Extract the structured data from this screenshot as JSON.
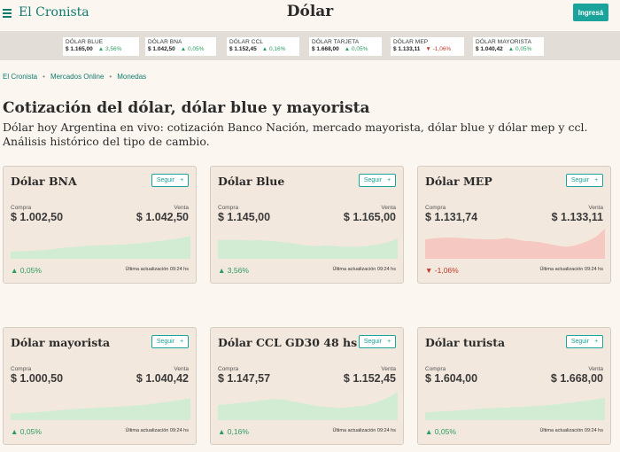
{
  "header": {
    "logo": "El Cronista",
    "title": "Dólar",
    "login_label": "Ingresá"
  },
  "ticker": [
    {
      "name": "DÓLAR BLUE",
      "value": "$ 1.165,00",
      "change": "▲ 3,56%",
      "trend": "up"
    },
    {
      "name": "DÓLAR BNA",
      "value": "$ 1.042,50",
      "change": "▲ 0,05%",
      "trend": "up"
    },
    {
      "name": "DÓLAR CCL",
      "value": "$ 1.152,45",
      "change": "▲ 0,16%",
      "trend": "up"
    },
    {
      "name": "DÓLAR TARJETA",
      "value": "$ 1.668,00",
      "change": "▲ 0,05%",
      "trend": "up"
    },
    {
      "name": "DÓLAR MEP",
      "value": "$ 1.133,11",
      "change": "▼ -1,06%",
      "trend": "down"
    },
    {
      "name": "DÓLAR MAYORISTA",
      "value": "$ 1.040,42",
      "change": "▲ 0,05%",
      "trend": "up"
    }
  ],
  "breadcrumb": [
    "El Cronista",
    "Mercados Online",
    "Monedas"
  ],
  "page": {
    "heading": "Cotización del dólar, dólar blue y mayorista",
    "intro": "Dólar hoy Argentina en vivo: cotización Banco Nación, mercado mayorista, dólar blue y dólar mep y ccl. Análisis histórico del tipo de cambio."
  },
  "card_labels": {
    "buy": "Compra",
    "sell": "Venta",
    "follow": "Seguir",
    "follow_icon": "+",
    "updated": "Última actualización 09:24 hs"
  },
  "colors": {
    "accent": "#1aa39a",
    "up": "#2a9d60",
    "down": "#c0392b",
    "up_fill": "#d2ecd3",
    "down_fill": "#f5c9c2"
  },
  "cards": [
    {
      "name": "Dólar BNA",
      "buy": "$ 1.002,50",
      "sell": "$ 1.042,50",
      "change": "▲ 0,05%",
      "trend": "up",
      "spark": [
        0.25,
        0.25,
        0.26,
        0.27,
        0.29,
        0.31,
        0.35,
        0.38,
        0.4,
        0.42,
        0.44,
        0.45,
        0.46,
        0.47,
        0.48,
        0.5,
        0.52,
        0.55,
        0.58,
        0.62,
        0.66,
        0.7,
        0.75
      ]
    },
    {
      "name": "Dólar Blue",
      "buy": "$ 1.145,00",
      "sell": "$ 1.165,00",
      "change": "▲ 3,56%",
      "trend": "up",
      "spark": [
        0.62,
        0.62,
        0.63,
        0.62,
        0.61,
        0.62,
        0.6,
        0.58,
        0.55,
        0.52,
        0.47,
        0.44,
        0.42,
        0.44,
        0.43,
        0.41,
        0.4,
        0.4,
        0.42,
        0.45,
        0.5,
        0.56,
        0.68
      ]
    },
    {
      "name": "Dólar MEP",
      "buy": "$ 1.131,74",
      "sell": "$ 1.133,11",
      "change": "▼ -1,06%",
      "trend": "down",
      "spark": [
        0.64,
        0.68,
        0.7,
        0.71,
        0.7,
        0.68,
        0.66,
        0.65,
        0.64,
        0.66,
        0.69,
        0.65,
        0.6,
        0.58,
        0.55,
        0.5,
        0.45,
        0.4,
        0.42,
        0.5,
        0.6,
        0.75,
        1.0
      ]
    },
    {
      "name": "Dólar mayorista",
      "buy": "$ 1.000,50",
      "sell": "$ 1.040,42",
      "change": "▲ 0,05%",
      "trend": "up",
      "spark": [
        0.22,
        0.23,
        0.25,
        0.26,
        0.28,
        0.3,
        0.33,
        0.35,
        0.37,
        0.39,
        0.4,
        0.42,
        0.43,
        0.44,
        0.46,
        0.48,
        0.5,
        0.53,
        0.56,
        0.6,
        0.64,
        0.68,
        0.72
      ]
    },
    {
      "name": "Dólar CCL GD30 48 hs",
      "buy": "$ 1.147,57",
      "sell": "$ 1.152,45",
      "change": "▲ 0,16%",
      "trend": "up",
      "spark": [
        0.5,
        0.52,
        0.55,
        0.58,
        0.6,
        0.64,
        0.68,
        0.7,
        0.68,
        0.63,
        0.58,
        0.52,
        0.48,
        0.44,
        0.42,
        0.41,
        0.43,
        0.46,
        0.48,
        0.55,
        0.65,
        0.78,
        0.95
      ]
    },
    {
      "name": "Dólar turista",
      "buy": "$ 1.604,00",
      "sell": "$ 1.668,00",
      "change": "▲ 0,05%",
      "trend": "up",
      "spark": [
        0.25,
        0.27,
        0.29,
        0.3,
        0.32,
        0.34,
        0.36,
        0.38,
        0.4,
        0.41,
        0.42,
        0.43,
        0.44,
        0.46,
        0.47,
        0.49,
        0.52,
        0.55,
        0.58,
        0.62,
        0.66,
        0.7,
        0.74
      ]
    }
  ]
}
